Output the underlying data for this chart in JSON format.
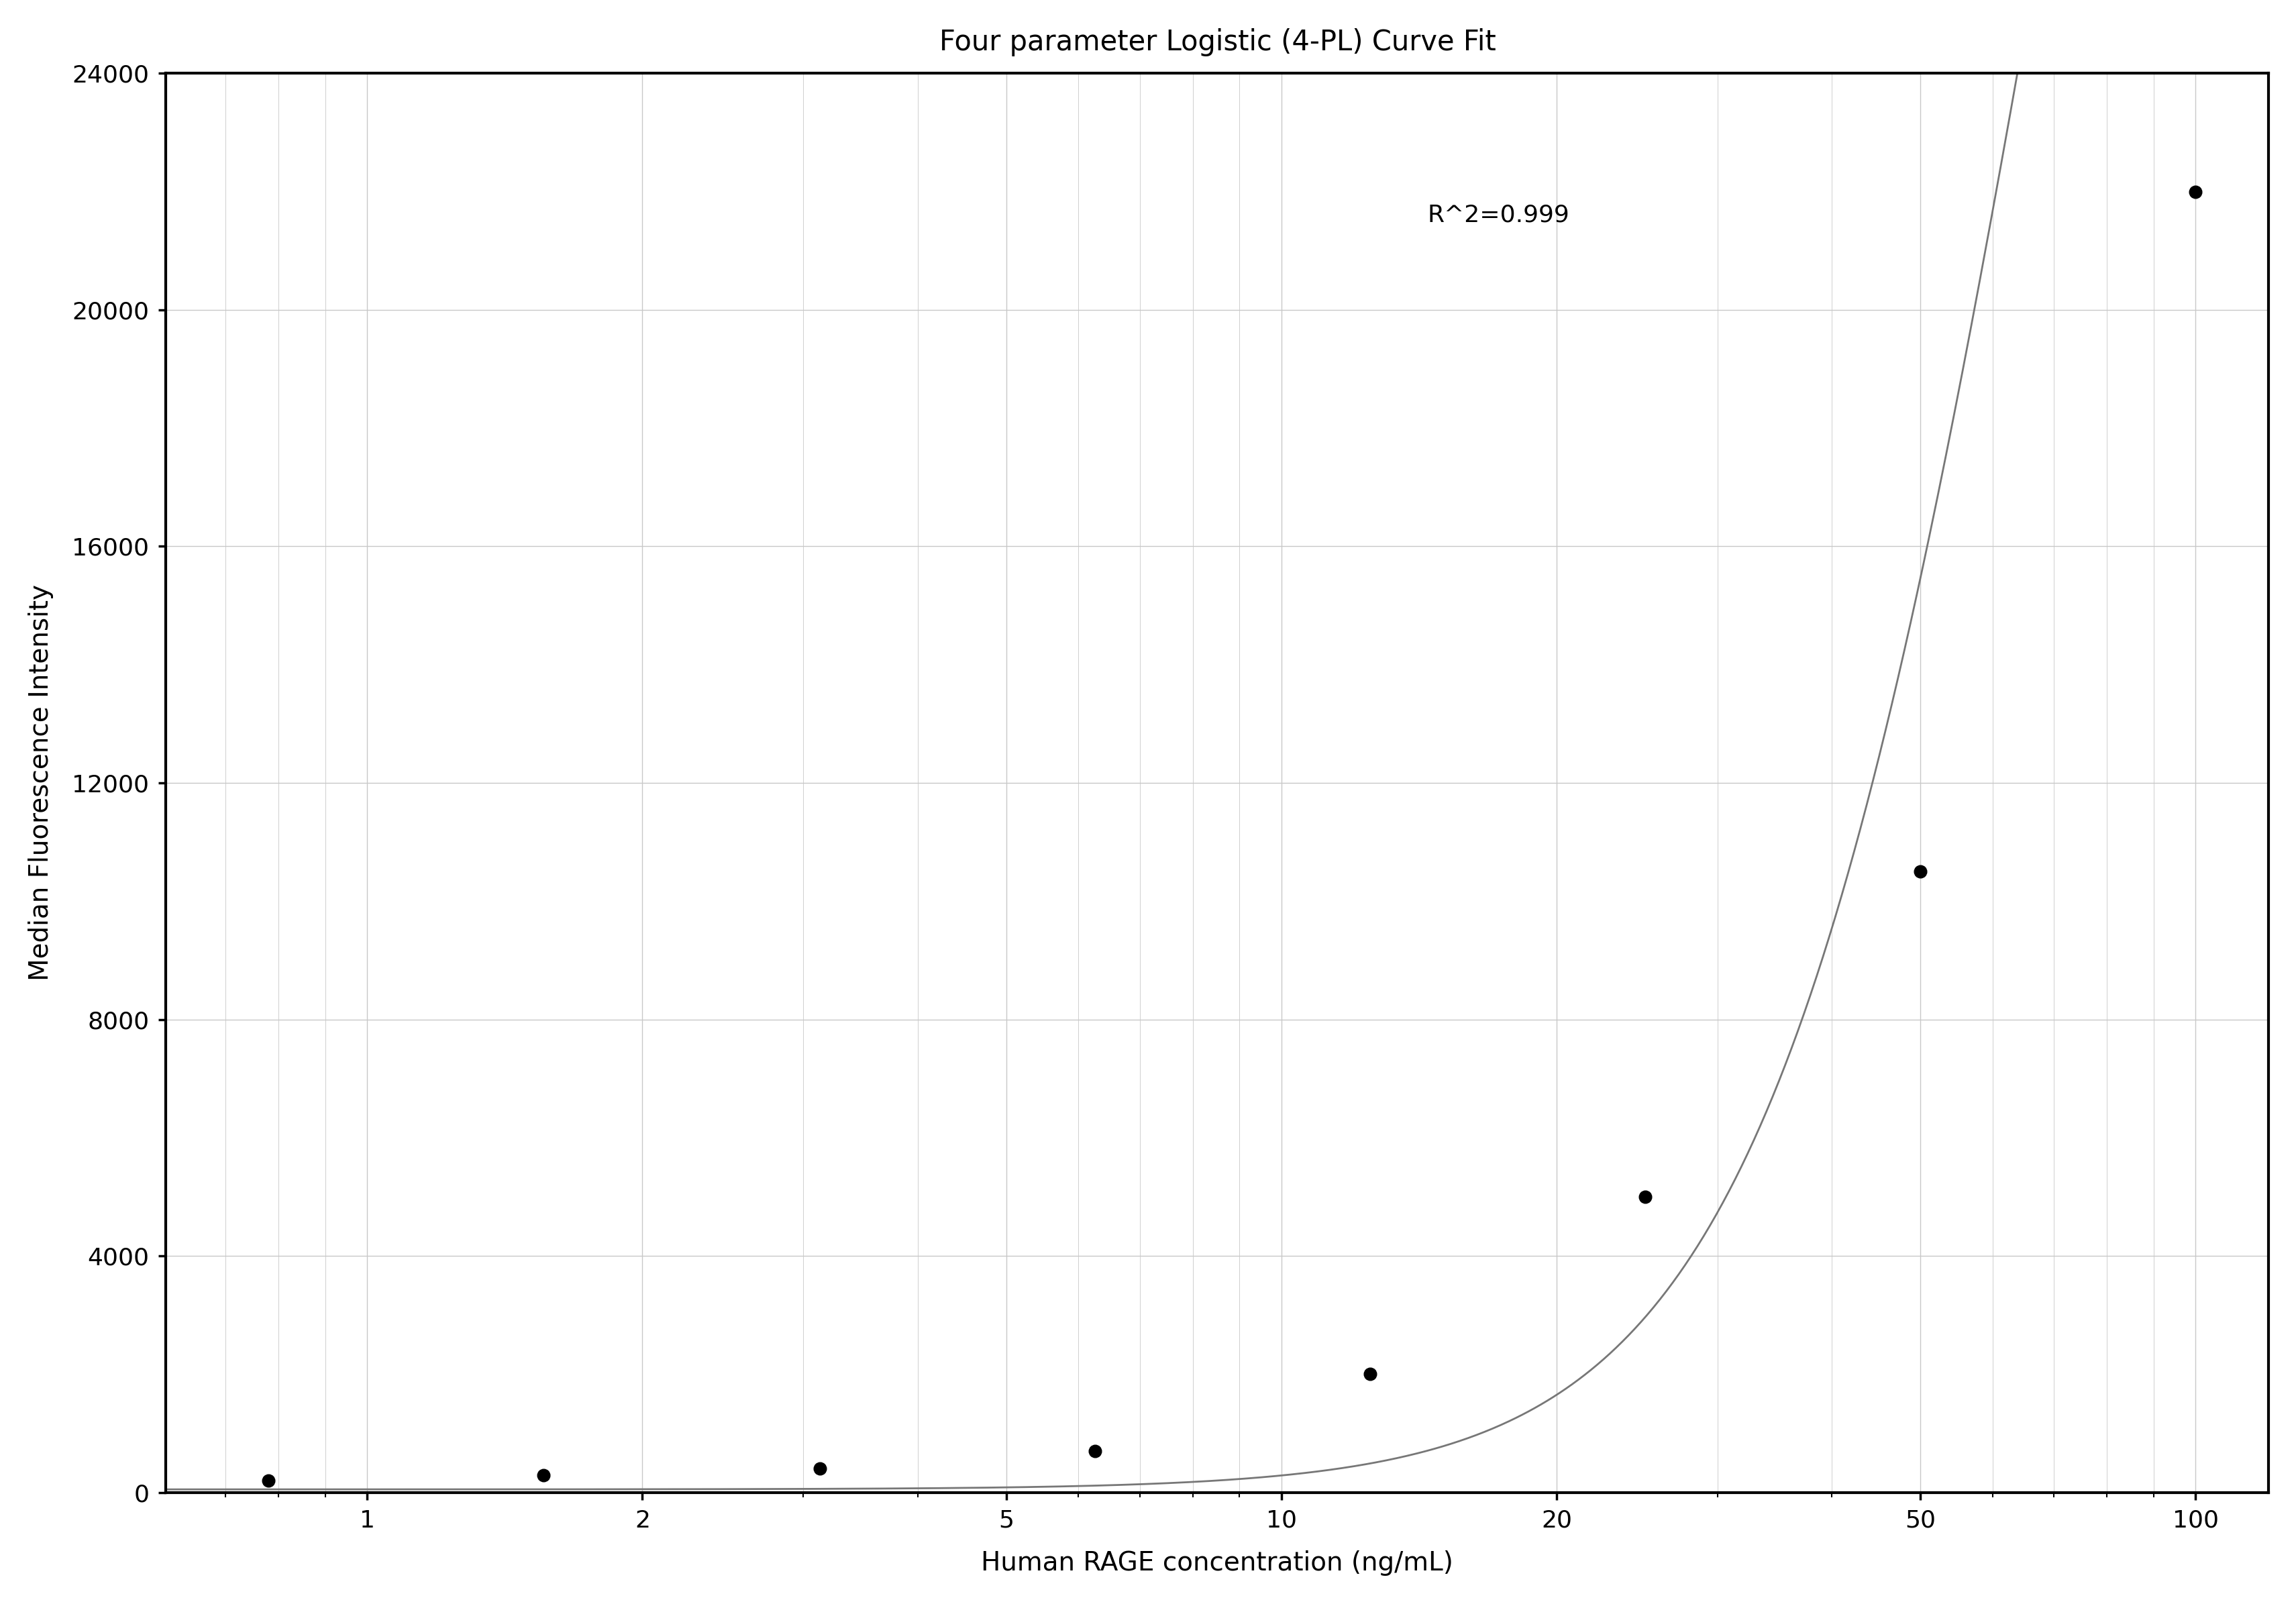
{
  "title": "Four parameter Logistic (4-PL) Curve Fit",
  "xlabel": "Human RAGE concentration (ng/mL)",
  "ylabel": "Median Fluorescence Intensity",
  "r_squared_text": "R^2=0.999",
  "data_x": [
    0.78,
    1.56,
    3.13,
    6.25,
    12.5,
    25.0,
    50.0,
    100.0
  ],
  "data_y": [
    200,
    290,
    400,
    700,
    2000,
    5000,
    10500,
    22000
  ],
  "xlim_log_min": -0.22,
  "xlim_log_max": 2.08,
  "ylim": [
    0,
    24000
  ],
  "yticks": [
    0,
    4000,
    8000,
    12000,
    16000,
    20000,
    24000
  ],
  "xticks": [
    1,
    2,
    5,
    10,
    20,
    50,
    100
  ],
  "4pl_A": 50,
  "4pl_B": 2.8,
  "4pl_C": 70.0,
  "4pl_D": 55000,
  "curve_color": "#777777",
  "point_color": "#000000",
  "grid_color": "#c8c8c8",
  "background_color": "#ffffff",
  "title_fontsize": 30,
  "label_fontsize": 28,
  "tick_fontsize": 26,
  "annotation_fontsize": 26,
  "point_size": 180,
  "line_width": 2.0,
  "spine_linewidth": 3.0
}
